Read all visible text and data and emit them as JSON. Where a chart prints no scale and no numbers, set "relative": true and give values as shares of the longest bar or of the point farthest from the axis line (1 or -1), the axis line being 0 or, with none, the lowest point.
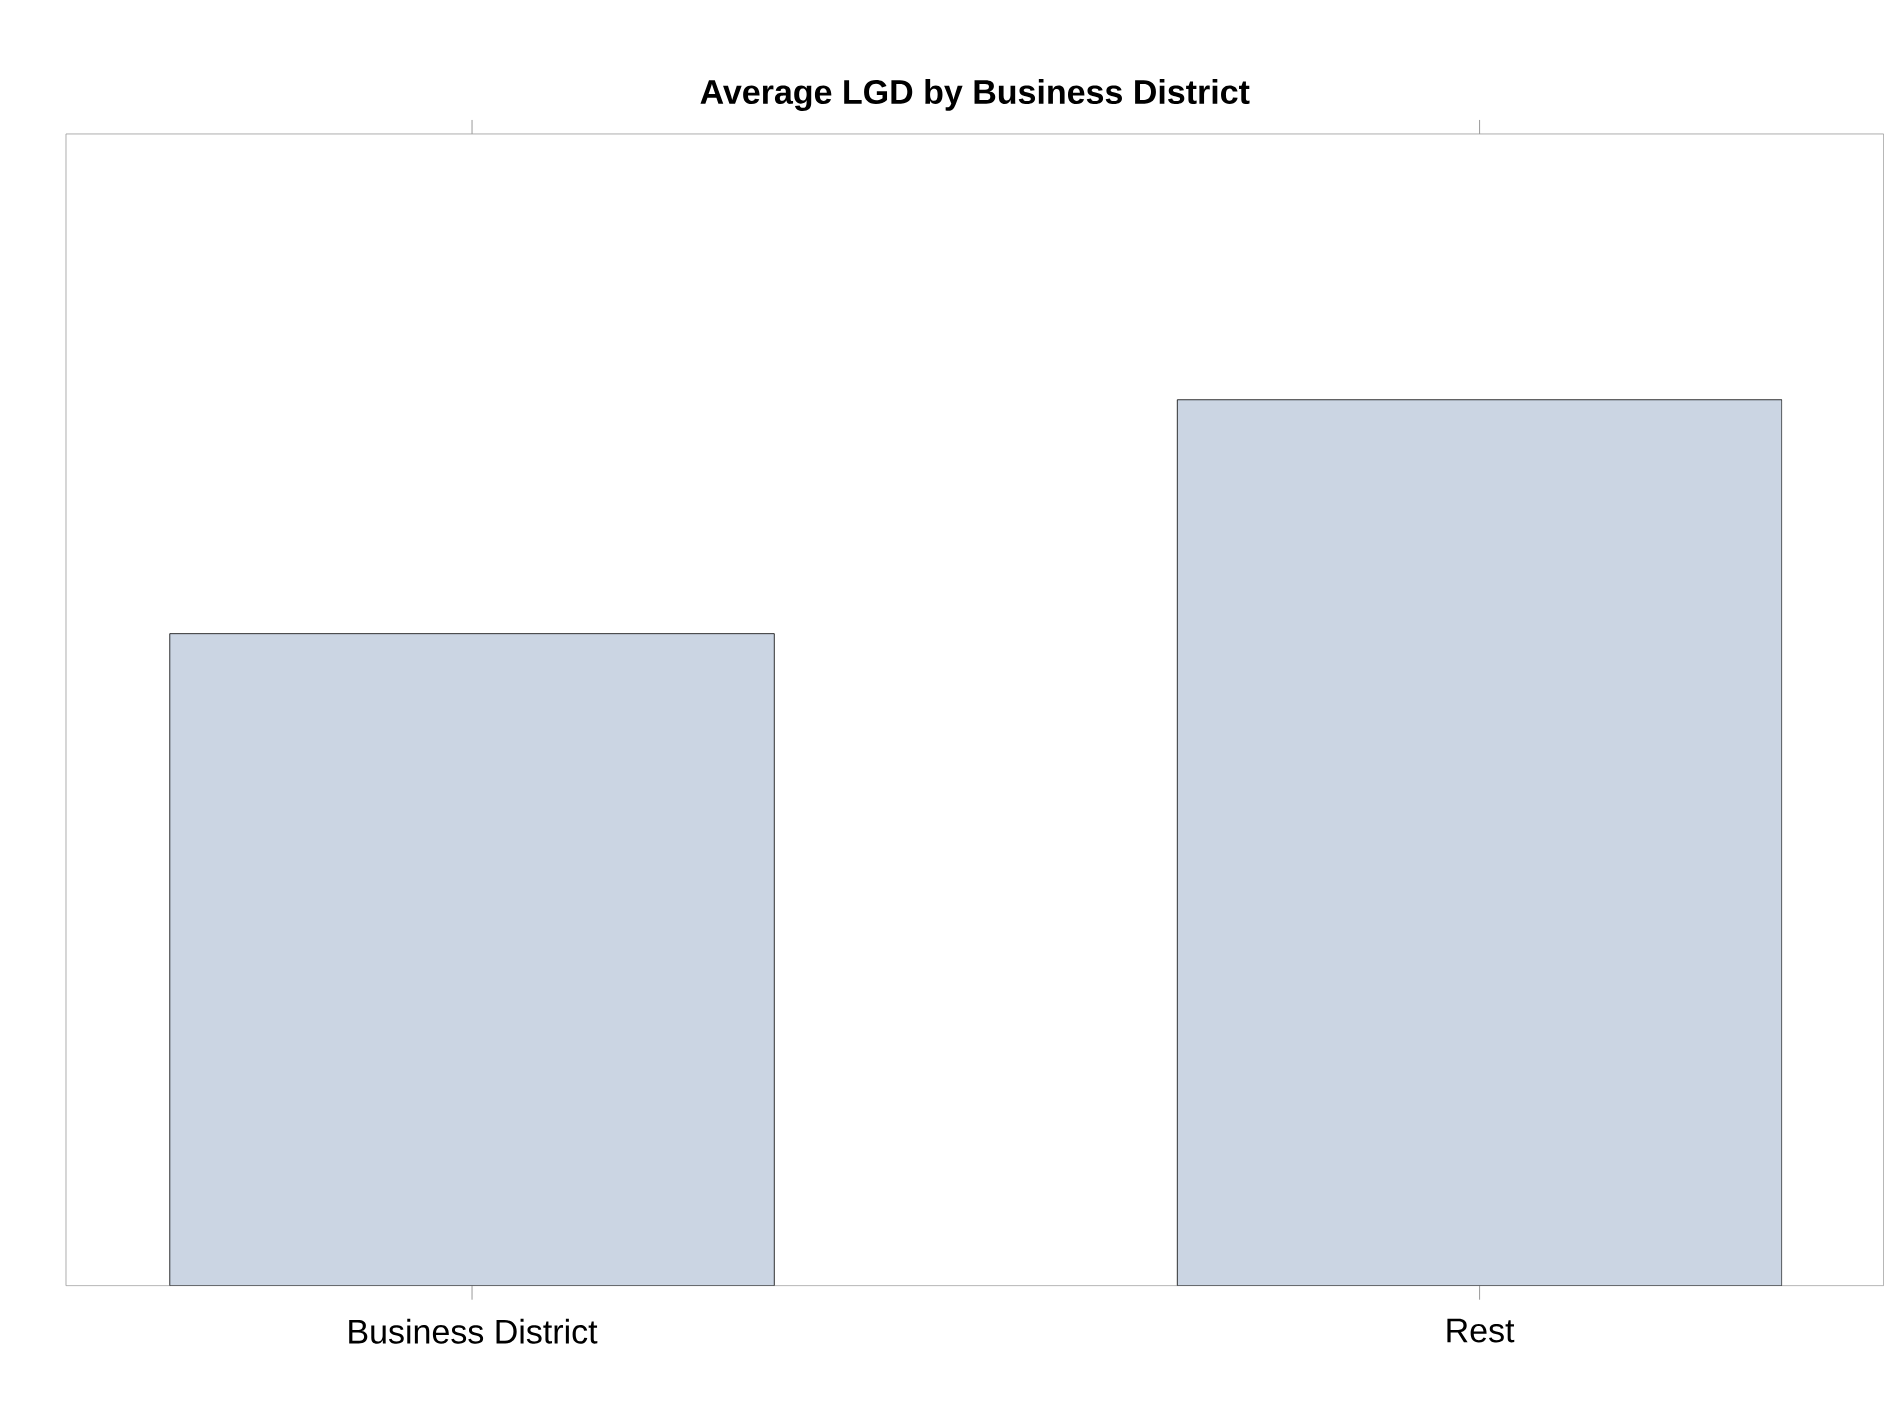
{
  "chart_data": {
    "type": "bar",
    "title": "Average LGD by Business District",
    "categories": [
      "Business District",
      "Rest"
    ],
    "values": [
      0.736,
      1
    ],
    "color": "#cbd5e3",
    "relative": true
  }
}
